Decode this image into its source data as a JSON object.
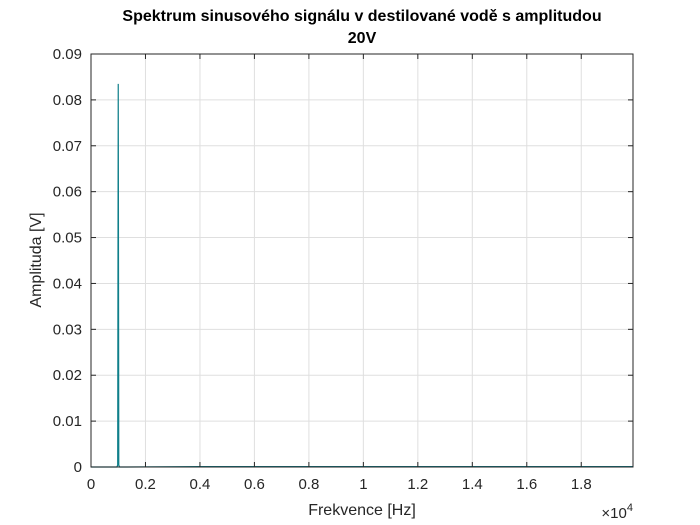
{
  "chart_data": {
    "type": "line",
    "title_lines": [
      "Spektrum sinusového signálu v destilované vodě s amplitudou",
      "20V"
    ],
    "xlabel": "Frekvence [Hz]",
    "ylabel": "Amplituda [V]",
    "x_exponent_label": "×10",
    "x_exponent_power": "4",
    "xlim": [
      0,
      19900
    ],
    "ylim": [
      0,
      0.09
    ],
    "x_ticks": [
      0,
      2000,
      4000,
      6000,
      8000,
      10000,
      12000,
      14000,
      16000,
      18000
    ],
    "x_tick_labels": [
      "0",
      "0.2",
      "0.4",
      "0.6",
      "0.8",
      "1",
      "1.2",
      "1.4",
      "1.6",
      "1.8"
    ],
    "y_ticks": [
      0,
      0.01,
      0.02,
      0.03,
      0.04,
      0.05,
      0.06,
      0.07,
      0.08,
      0.09
    ],
    "y_tick_labels": [
      "0",
      "0.01",
      "0.02",
      "0.03",
      "0.04",
      "0.05",
      "0.06",
      "0.07",
      "0.08",
      "0.09"
    ],
    "grid": true,
    "series": [
      {
        "color": "#0f7f8a",
        "x": [
          0,
          950,
          980,
          1000,
          1020,
          1050,
          1200,
          4000,
          6000,
          8000,
          10000,
          12000,
          14000,
          16000,
          18000,
          19900
        ],
        "y": [
          0,
          0,
          0.0004,
          0.0835,
          0.0004,
          0,
          0,
          0.0001,
          0.0001,
          0.0001,
          0.0001,
          0.0001,
          0.0001,
          0.0001,
          0.0001,
          0.0001
        ]
      }
    ]
  }
}
